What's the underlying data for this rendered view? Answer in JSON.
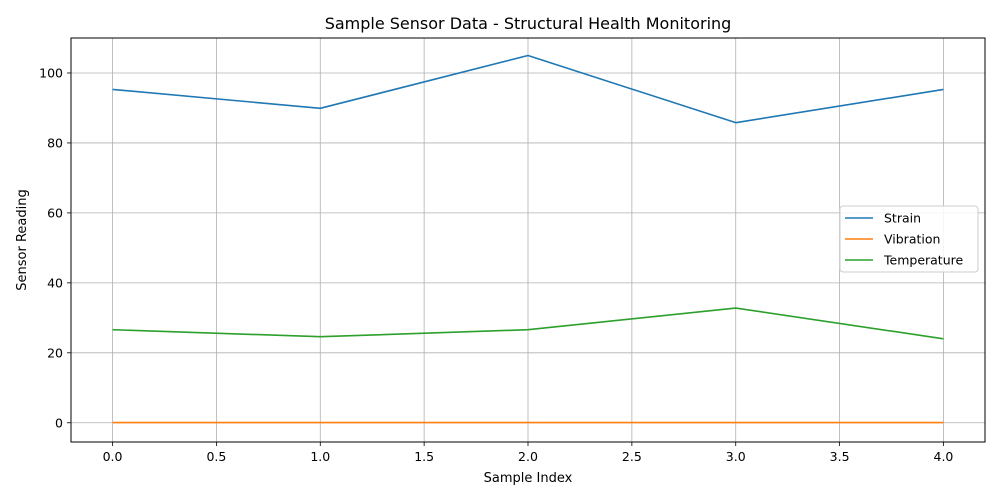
{
  "chart_data": {
    "type": "line",
    "title": "Sample Sensor Data - Structural Health Monitoring",
    "xlabel": "Sample Index",
    "ylabel": "Sensor Reading",
    "x": [
      0,
      1,
      2,
      3,
      4
    ],
    "xlim": [
      -0.2,
      4.2
    ],
    "ylim": [
      -5.5,
      110
    ],
    "xticks": [
      0,
      0.5,
      1,
      1.5,
      2,
      2.5,
      3,
      3.5,
      4
    ],
    "xtick_labels": [
      "0.0",
      "0.5",
      "1.0",
      "1.5",
      "2.0",
      "2.5",
      "3.0",
      "3.5",
      "4.0"
    ],
    "yticks": [
      0,
      20,
      40,
      60,
      80,
      100
    ],
    "ytick_labels": [
      "0",
      "20",
      "40",
      "60",
      "80",
      "100"
    ],
    "grid": true,
    "legend_position": "center-right",
    "series": [
      {
        "name": "Strain",
        "color": "#1f77b4",
        "values": [
          95.3,
          89.9,
          105.0,
          85.8,
          95.3
        ]
      },
      {
        "name": "Vibration",
        "color": "#ff7f0e",
        "values": [
          0.05,
          0.05,
          0.05,
          0.05,
          0.05
        ]
      },
      {
        "name": "Temperature",
        "color": "#2ca02c",
        "values": [
          26.6,
          24.6,
          26.6,
          32.8,
          24.0
        ]
      }
    ]
  }
}
